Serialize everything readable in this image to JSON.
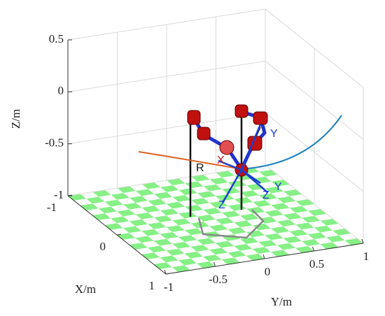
{
  "chart_data": {
    "type": "3d",
    "xlabel": "X/m",
    "ylabel": "Y/m",
    "zlabel": "Z/m",
    "xlim": [
      -1,
      1
    ],
    "ylim": [
      -1,
      1
    ],
    "zlim": [
      -1,
      0.5
    ],
    "xticks": [
      -1,
      0,
      1
    ],
    "yticks": [
      -1,
      -0.5,
      0,
      0.5,
      1
    ],
    "zticks": [
      -1,
      -0.5,
      0,
      0.5
    ],
    "grid": true,
    "floor_colors": [
      "#86f086",
      "#ffffff"
    ],
    "annotations": [
      "Y",
      "X",
      "R",
      "Z",
      "Z",
      "Y"
    ]
  }
}
